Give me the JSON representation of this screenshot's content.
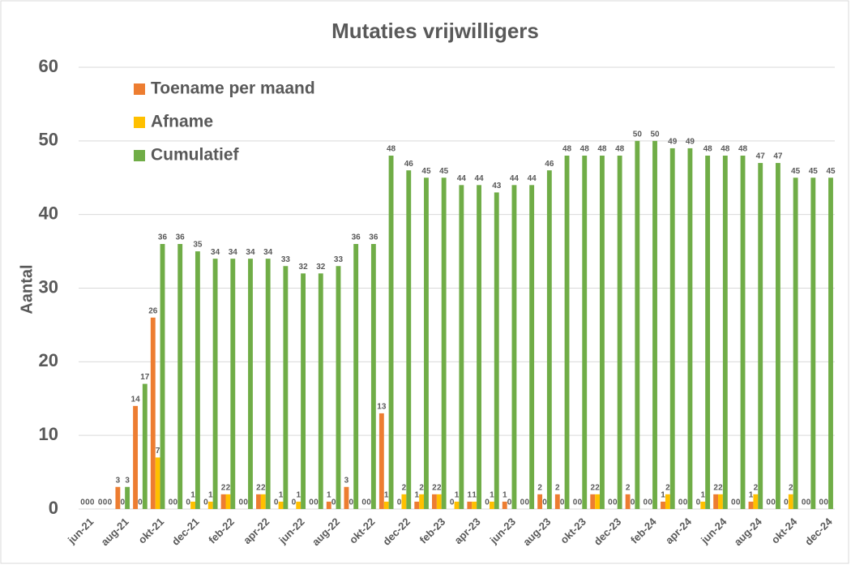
{
  "chart_data": {
    "type": "bar",
    "title": "Mutaties vrijwilligers",
    "y_label": "Aantal",
    "categories": [
      "jun-21",
      null,
      "aug-21",
      null,
      "okt-21",
      null,
      "dec-21",
      null,
      "feb-22",
      null,
      "apr-22",
      null,
      "jun-22",
      null,
      "aug-22",
      null,
      "okt-22",
      null,
      "dec-22",
      null,
      "feb-23",
      null,
      "apr-23",
      null,
      "jun-23",
      null,
      "aug-23",
      null,
      "okt-23",
      null,
      "dec-23",
      null,
      "feb-24",
      null,
      "apr-24",
      null,
      "jun-24",
      null,
      "aug-24",
      null,
      "okt-24",
      null,
      "dec-24"
    ],
    "series": [
      {
        "name": "Toename per maand",
        "color": "#ed7d31",
        "values": [
          0,
          0,
          3,
          14,
          26,
          0,
          0,
          0,
          2,
          0,
          2,
          0,
          0,
          0,
          1,
          3,
          0,
          13,
          0,
          1,
          2,
          0,
          1,
          0,
          1,
          0,
          2,
          2,
          0,
          2,
          0,
          2,
          0,
          1,
          0,
          0,
          2,
          0,
          1,
          0,
          0,
          0,
          0
        ]
      },
      {
        "name": "Afname",
        "color": "#ffc000",
        "values": [
          0,
          0,
          0,
          0,
          7,
          0,
          1,
          1,
          2,
          0,
          2,
          1,
          1,
          0,
          0,
          0,
          0,
          1,
          2,
          2,
          2,
          1,
          1,
          1,
          0,
          0,
          0,
          0,
          0,
          2,
          0,
          0,
          0,
          2,
          0,
          1,
          2,
          0,
          2,
          0,
          2,
          0,
          0
        ]
      },
      {
        "name": "Cumulatief",
        "color": "#70ad47",
        "values": [
          0,
          0,
          3,
          17,
          36,
          36,
          35,
          34,
          34,
          34,
          34,
          33,
          32,
          32,
          33,
          36,
          36,
          48,
          46,
          45,
          45,
          44,
          44,
          43,
          44,
          44,
          46,
          48,
          48,
          48,
          48,
          50,
          50,
          49,
          49,
          48,
          48,
          48,
          47,
          47,
          45,
          45,
          45
        ]
      }
    ],
    "ylim": [
      0,
      60
    ],
    "yticks": [
      0,
      10,
      20,
      30,
      40,
      50,
      60
    ],
    "grid": true,
    "legend": "top-left"
  }
}
